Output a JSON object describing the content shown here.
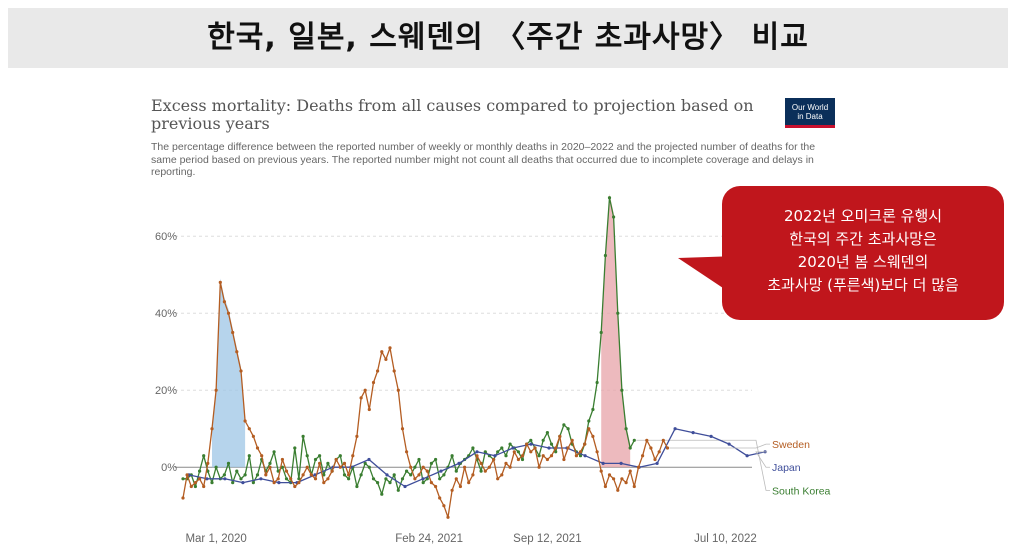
{
  "banner": {
    "title": "한국, 일본, 스웨덴의 〈주간 초과사망〉 비교"
  },
  "header": {
    "title": "Excess mortality: Deaths from all causes compared to projection based on previous years",
    "subtitle": "The percentage difference between the reported number of weekly or monthly deaths in 2020–2022 and the projected number of deaths for the same period based on previous years. The reported number might not count all deaths that occurred due to incomplete coverage and delays in reporting.",
    "logo": [
      "Our World",
      "in Data"
    ]
  },
  "callout": {
    "lines": [
      "2022년 오미크론 유행시",
      "한국의 주간 초과사망은",
      "2020년 봄 스웨덴의",
      "초과사망 (푸른색)보다 더 많음"
    ],
    "color": "#c0161c"
  },
  "chart_data": {
    "type": "line",
    "y_unit": "%",
    "xlim": [
      "2020-01-05",
      "2022-08-07"
    ],
    "ylim": [
      -15,
      72
    ],
    "y_ticks": [
      0,
      20,
      40,
      60
    ],
    "y_tick_labels": [
      "0%",
      "20%",
      "40%",
      "60%"
    ],
    "x_tick_labels": [
      "Mar 1, 2020",
      "Feb 24, 2021",
      "Sep 12, 2021",
      "Jul 10, 2022"
    ],
    "x_tick_dates": [
      "2020-03-01",
      "2021-02-24",
      "2021-09-12",
      "2022-07-10"
    ],
    "grid": "horizontal",
    "legend": "right, at line ends",
    "series": [
      {
        "name": "South Korea",
        "color": "#3a7e31",
        "frequency": "weekly",
        "start": "2020-01-05",
        "values": [
          -3,
          -3,
          -2,
          -5,
          -1,
          3,
          -1,
          -4,
          0,
          -3,
          -2,
          1,
          -4,
          -1,
          -3,
          -2,
          3,
          -4,
          -2,
          2,
          -1,
          1,
          4,
          -1,
          0,
          -3,
          -4,
          5,
          -3,
          8,
          3,
          -2,
          2,
          3,
          -2,
          1,
          -1,
          2,
          3,
          -2,
          -3,
          0,
          -5,
          -2,
          1,
          0,
          -3,
          -4,
          -7,
          -3,
          -4,
          -2,
          -6,
          -3,
          -1,
          -2,
          0,
          2,
          -4,
          -3,
          1,
          2,
          -3,
          -2,
          0,
          3,
          -1,
          1,
          2,
          3,
          5,
          2,
          -1,
          4,
          3,
          2,
          4,
          5,
          3,
          6,
          5,
          4,
          2,
          6,
          7,
          5,
          3,
          7,
          9,
          6,
          4,
          8,
          11,
          10,
          6,
          4,
          3,
          6,
          12,
          15,
          22,
          35,
          55,
          70,
          65,
          40,
          20,
          10,
          5,
          7
        ]
      },
      {
        "name": "Japan",
        "color": "#3f4e9a",
        "frequency": "monthly",
        "start": "2020-01-15",
        "values": [
          -2,
          -3,
          -3,
          -4,
          -3,
          -4,
          -4,
          -2,
          0,
          0,
          2,
          -2,
          -5,
          -3,
          -1,
          1,
          4,
          3,
          5,
          6,
          5,
          5,
          3,
          1,
          1,
          0,
          1,
          10,
          9,
          8,
          6,
          3,
          4
        ]
      },
      {
        "name": "Sweden",
        "color": "#b45d22",
        "frequency": "weekly",
        "start": "2020-01-05",
        "values": [
          -8,
          -2,
          -5,
          -4,
          -3,
          -5,
          1,
          10,
          20,
          48,
          43,
          40,
          35,
          30,
          25,
          12,
          10,
          8,
          5,
          3,
          -2,
          0,
          -4,
          -3,
          2,
          -1,
          -3,
          -5,
          -4,
          -2,
          0,
          -2,
          -3,
          1,
          -4,
          -3,
          -1,
          2,
          0,
          1,
          -2,
          3,
          8,
          18,
          20,
          15,
          22,
          25,
          30,
          28,
          31,
          25,
          20,
          10,
          4,
          0,
          -3,
          -2,
          0,
          -1,
          -4,
          -5,
          -8,
          -10,
          -13,
          -6,
          -3,
          -5,
          0,
          -4,
          -2,
          3,
          1,
          -1,
          0,
          2,
          -3,
          -2,
          1,
          0,
          4,
          2,
          3,
          6,
          4,
          5,
          0,
          3,
          2,
          3,
          5,
          8,
          2,
          5,
          7,
          3,
          4,
          6,
          10,
          8,
          4,
          -1,
          -5,
          -2,
          -3,
          -6,
          -3,
          -4,
          -1,
          -5,
          0,
          3,
          7,
          5,
          2,
          4,
          7,
          5
        ]
      }
    ],
    "highlights": [
      {
        "series": "Sweden",
        "period": "spring 2020",
        "color": "#9dc6e6"
      },
      {
        "series": "South Korea",
        "period": "2022 Omicron",
        "color": "#e7a3a8"
      }
    ]
  }
}
